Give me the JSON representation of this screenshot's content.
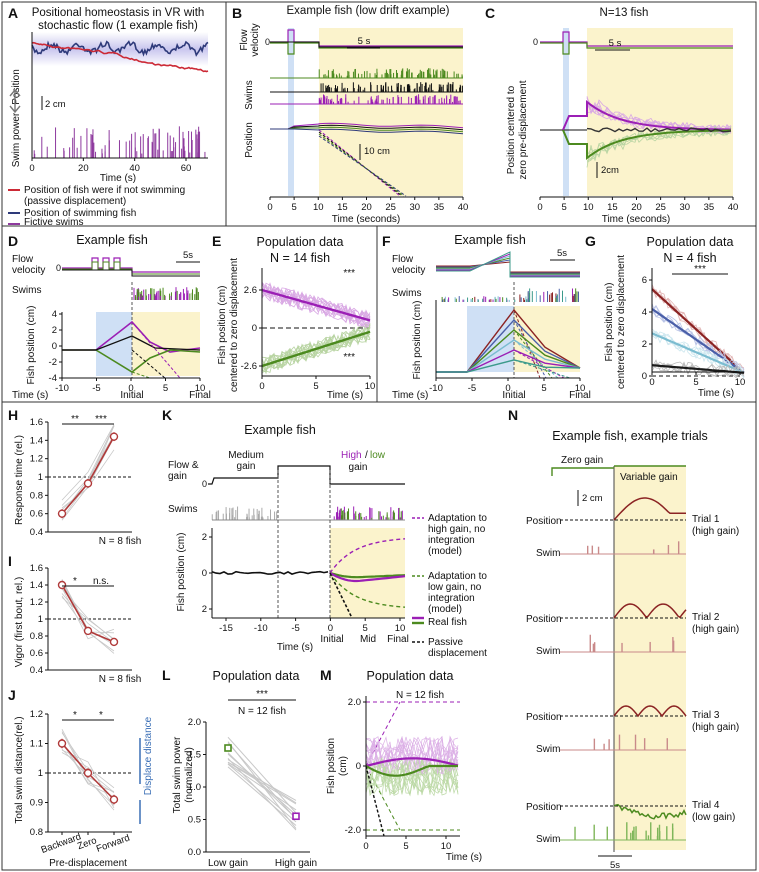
{
  "panels": {
    "A": {
      "letter": "A",
      "title_lines": [
        "Positional homeostasis in VR with",
        "stochastic flow (1 example fish)"
      ],
      "ylabel_top": "Position",
      "ylabel_bottom": "Swim power",
      "scalebar": "2 cm",
      "xlabel": "Time (s)",
      "xticks": [
        "0",
        "20",
        "40",
        "60"
      ],
      "legend": [
        {
          "label": "Position of fish were if not swimming",
          "label2": "(passive displacement)",
          "color": "#cc2a36"
        },
        {
          "label": "Position of swimming fish",
          "label2": "",
          "color": "#2e3a7a"
        },
        {
          "label": "Fictive swims",
          "label2": "",
          "color": "#8e3a9e"
        }
      ]
    },
    "B": {
      "letter": "B",
      "title": "Example fish (low drift example)",
      "ylabel_flow": [
        "Flow",
        "velocity"
      ],
      "ylabel_swims": "Swims",
      "ylabel_pos": "Position",
      "scale_time": "5 s",
      "scale_pos": "10 cm",
      "xlabel": "Time (seconds)",
      "xticks": [
        "0",
        "5",
        "10",
        "15",
        "20",
        "25",
        "30",
        "35",
        "40"
      ],
      "zero": "0"
    },
    "C": {
      "letter": "C",
      "title": "N=13 fish",
      "ylabel": [
        "Position centered to",
        "zero pre-displacement"
      ],
      "scale_time": "5 s",
      "scale_pos": "2cm",
      "xlabel": "Time (seconds)",
      "xticks": [
        "0",
        "5",
        "10",
        "15",
        "20",
        "25",
        "30",
        "35",
        "40"
      ],
      "zero": "0"
    },
    "D": {
      "letter": "D",
      "title": "Example fish",
      "ylabel_flow": "Flow",
      "ylabel_flow2": "velocity",
      "ylabel_swims": "Swims",
      "scale_time": "5s",
      "ylabel": "Fish position (cm)",
      "yticks": [
        "4",
        "2",
        "0",
        "-2",
        "-4"
      ],
      "xticks": [
        "-10",
        "-5",
        "0",
        "5",
        "10"
      ],
      "xlabel": "Time (s)",
      "initial": "Initial",
      "final": "Final",
      "zero": "0"
    },
    "E": {
      "letter": "E",
      "title": "Population data",
      "n": "N = 14 fish",
      "sig_top": "***",
      "sig_bottom": "***",
      "ylabel": [
        "Fish position (cm)",
        "centered to zero displacement"
      ],
      "yticks": [
        "2.6",
        "0",
        "-2.6"
      ],
      "xticks": [
        "0",
        "5",
        "10"
      ],
      "xlabel": "Time (s)"
    },
    "F": {
      "letter": "F",
      "title": "Example fish",
      "ylabel_flow": "Flow",
      "ylabel_flow2": "velocity",
      "ylabel_swims": "Swims",
      "scale_time": "5s",
      "ylabel": "Fish position (cm)",
      "xticks": [
        "-10",
        "-5",
        "0",
        "5",
        "10"
      ],
      "xlabel": "Time (s)",
      "initial": "Initial",
      "final": "Final",
      "zero": "0"
    },
    "G": {
      "letter": "G",
      "title": "Population data",
      "n": "N = 4 fish",
      "sig": "***",
      "ylabel": [
        "Fish position (cm)",
        "centered to zero displacement"
      ],
      "yticks": [
        "6",
        "4",
        "2",
        "0"
      ],
      "xticks": [
        "0",
        "5",
        "10"
      ],
      "xlabel": "Time (s)"
    },
    "H": {
      "letter": "H",
      "ylabel": "Response time (rel.)",
      "yticks": [
        "1.6",
        "1.4",
        "1.2",
        "1",
        "0.8",
        "0.6",
        "0.4"
      ],
      "sig": [
        "**",
        "***"
      ],
      "n": "N = 8 fish"
    },
    "I": {
      "letter": "I",
      "ylabel": "Vigor (first bout, rel.)",
      "yticks": [
        "1.6",
        "1.4",
        "1.2",
        "1",
        "0.8",
        "0.6",
        "0.4"
      ],
      "sig": [
        "*",
        "n.s."
      ],
      "n": "N = 8 fish"
    },
    "J": {
      "letter": "J",
      "ylabel": "Total swim distance(rel.)",
      "yticks": [
        "1.2",
        "1.1",
        "1",
        "0.9",
        "0.8"
      ],
      "sig": [
        "*",
        "*"
      ],
      "side": "Displace distance",
      "xcats": [
        "Backward",
        "Zero",
        "Forward"
      ],
      "xlabel": "Pre-displacement"
    },
    "K": {
      "letter": "K",
      "title": "Example fish",
      "ylabel_flow": [
        "Flow &",
        "gain"
      ],
      "zero": "0",
      "medium": [
        "Medium",
        "gain"
      ],
      "high": "High",
      "slash": "/",
      "low": "low",
      "gain": "gain",
      "ylabel_swims": "Swims",
      "ylabel": "Fish position (cm)",
      "yticks": [
        "2",
        "0",
        "2"
      ],
      "xticks": [
        "-15",
        "-10",
        "-5",
        "0",
        "5",
        "10"
      ],
      "xlabel": "Time (s)",
      "initial": "Initial",
      "mid": "Mid",
      "final": "Final",
      "legend": [
        {
          "lines": [
            "Adaptation to",
            "high gain, no",
            "integration",
            "(model)"
          ],
          "color": "#9b1fb5",
          "dash": true
        },
        {
          "lines": [
            "Adaptation to",
            "low gain, no",
            "integration",
            "(model)"
          ],
          "color": "#4c8a1f",
          "dash": true
        },
        {
          "lines": [
            "Real fish"
          ],
          "color": "#9b1fb5",
          "color2": "#4c8a1f",
          "dash": false
        },
        {
          "lines": [
            "Passive",
            "displacement"
          ],
          "color": "#111111",
          "dash": true
        }
      ]
    },
    "L": {
      "letter": "L",
      "title": "Population data",
      "n": "N = 12 fish",
      "sig": "***",
      "ylabel": [
        "Total swim power",
        "(normalized)"
      ],
      "yticks": [
        "2.0",
        "1.5",
        "1.0",
        "0.5",
        "0.0"
      ],
      "xcats": [
        "Low gain",
        "High gain"
      ]
    },
    "M": {
      "letter": "M",
      "title": "Population data",
      "n": "N = 12 fish",
      "ylabel": [
        "Fish position",
        "(cm)"
      ],
      "yticks": [
        "2.0",
        "0",
        "-2.0"
      ],
      "xticks": [
        "0",
        "5",
        "10"
      ],
      "xlabel": "Time (s)"
    },
    "N": {
      "letter": "N",
      "title": "Example fish, example trials",
      "zero_gain": "Zero gain",
      "variable_gain": "Variable gain",
      "scale_pos": "2 cm",
      "scale_time": "5s",
      "position": "Position",
      "swim": "Swim",
      "trials": [
        {
          "name": "Trial 1",
          "gain": "(high gain)"
        },
        {
          "name": "Trial 2",
          "gain": "(high gain)"
        },
        {
          "name": "Trial 3",
          "gain": "(high gain)"
        },
        {
          "name": "Trial 4",
          "gain": "(low gain)"
        }
      ]
    }
  },
  "colors": {
    "red": "#cc2a36",
    "navy": "#2e3a7a",
    "purple": "#9b1fb5",
    "green": "#4c8a1f",
    "shade_yellow": "#fbf3cc",
    "shade_blue": "#cfe0f5",
    "dark_red": "#8b2323",
    "swim_pink": "#c98a8a"
  }
}
